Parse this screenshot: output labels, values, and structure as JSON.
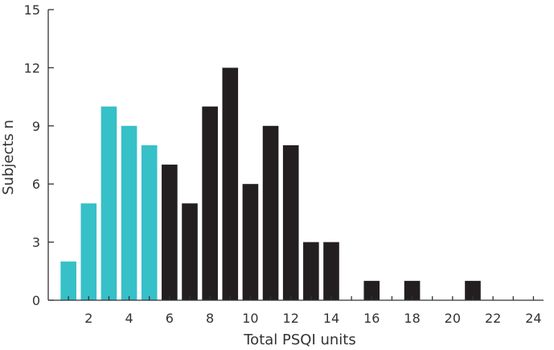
{
  "chart_data": {
    "type": "bar",
    "title": "",
    "xlabel": "Total PSQI units",
    "ylabel": "Subjects n",
    "xlim": [
      0,
      24.5
    ],
    "ylim": [
      0,
      15
    ],
    "x_ticks": [
      2,
      4,
      6,
      8,
      10,
      12,
      14,
      16,
      18,
      20,
      22,
      24
    ],
    "y_ticks": [
      0,
      3,
      6,
      9,
      12,
      15
    ],
    "grid": false,
    "legend": "none",
    "colors": {
      "good_sleepers": "#36c0c8",
      "poor_sleepers": "#231f20"
    },
    "x": [
      1,
      2,
      3,
      4,
      5,
      6,
      7,
      8,
      9,
      10,
      11,
      12,
      13,
      14,
      15,
      16,
      17,
      18,
      19,
      20,
      21
    ],
    "values": [
      2,
      5,
      10,
      9,
      8,
      7,
      5,
      10,
      12,
      6,
      9,
      8,
      3,
      3,
      0,
      1,
      0,
      1,
      0,
      0,
      1
    ],
    "highlight_max_x": 5
  }
}
